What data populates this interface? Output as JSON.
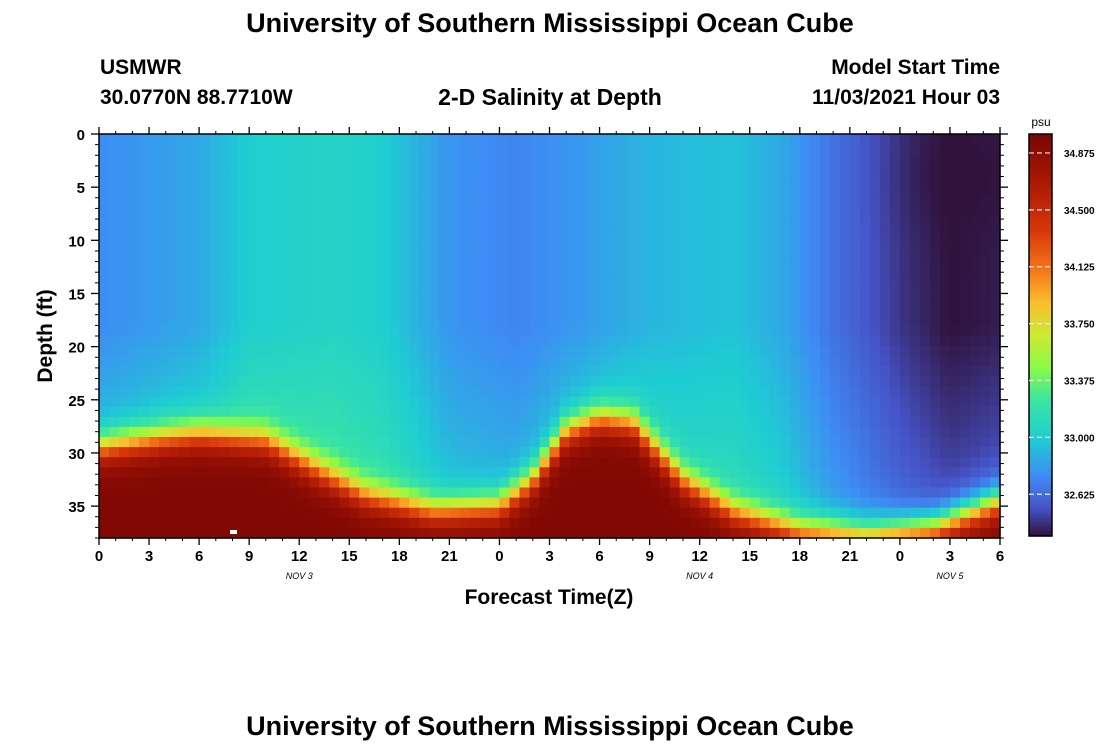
{
  "page": {
    "title": "University of Southern Mississippi Ocean Cube",
    "bottom_title": "University of Southern Mississippi Ocean Cube"
  },
  "header": {
    "station": "USMWR",
    "coords": "30.0770N  88.7710W",
    "plot_title": "2-D Salinity at Depth",
    "model_start_label": "Model Start Time",
    "model_start_value": "11/03/2021 Hour 03"
  },
  "chart_data": {
    "type": "heatmap",
    "title": "2-D Salinity at Depth",
    "xlabel": "Forecast Time(Z)",
    "ylabel": "Depth (ft)",
    "x_range_hours": [
      0,
      54
    ],
    "x_tick_labels": [
      "0",
      "3",
      "6",
      "9",
      "12",
      "15",
      "18",
      "21",
      "0",
      "3",
      "6",
      "9",
      "12",
      "15",
      "18",
      "21",
      "0",
      "3",
      "6"
    ],
    "x_tick_hours": [
      0,
      3,
      6,
      9,
      12,
      15,
      18,
      21,
      24,
      27,
      30,
      33,
      36,
      39,
      42,
      45,
      48,
      51,
      54
    ],
    "date_labels": [
      {
        "text": "NOV 3",
        "hour": 12
      },
      {
        "text": "NOV 4",
        "hour": 36
      },
      {
        "text": "NOV 5",
        "hour": 51
      }
    ],
    "y_range_ft": [
      0,
      38
    ],
    "y_ticks": [
      "0",
      "5",
      "10",
      "15",
      "20",
      "25",
      "30",
      "35"
    ],
    "y_tick_values": [
      0,
      5,
      10,
      15,
      20,
      25,
      30,
      35
    ],
    "colorbar": {
      "unit": "psu",
      "range": [
        32.35,
        35.0
      ],
      "tick_labels": [
        "34.875",
        "34.500",
        "34.125",
        "33.750",
        "33.375",
        "33.000",
        "32.625"
      ],
      "tick_values": [
        34.875,
        34.5,
        34.125,
        33.75,
        33.375,
        33.0,
        32.625
      ]
    },
    "field_model": {
      "surface_salinity": [
        {
          "hour": 0,
          "psu": 32.75
        },
        {
          "hour": 6,
          "psu": 32.85
        },
        {
          "hour": 9,
          "psu": 33.0
        },
        {
          "hour": 14,
          "psu": 33.05
        },
        {
          "hour": 17,
          "psu": 33.0
        },
        {
          "hour": 21,
          "psu": 32.78
        },
        {
          "hour": 25,
          "psu": 32.72
        },
        {
          "hour": 29,
          "psu": 32.8
        },
        {
          "hour": 33,
          "psu": 32.9
        },
        {
          "hour": 38,
          "psu": 32.95
        },
        {
          "hour": 41,
          "psu": 32.85
        },
        {
          "hour": 44,
          "psu": 32.65
        },
        {
          "hour": 48,
          "psu": 32.45
        },
        {
          "hour": 51,
          "psu": 32.35
        },
        {
          "hour": 54,
          "psu": 32.38
        }
      ],
      "halocline_depth_ft": [
        {
          "hour": 0,
          "ft": 29.5
        },
        {
          "hour": 4,
          "ft": 28.5
        },
        {
          "hour": 6,
          "ft": 28.2
        },
        {
          "hour": 10,
          "ft": 28.8
        },
        {
          "hour": 13,
          "ft": 31.5
        },
        {
          "hour": 16,
          "ft": 34.0
        },
        {
          "hour": 20,
          "ft": 35.4
        },
        {
          "hour": 24,
          "ft": 35.0
        },
        {
          "hour": 26,
          "ft": 32.5
        },
        {
          "hour": 28,
          "ft": 28.0
        },
        {
          "hour": 30,
          "ft": 26.7
        },
        {
          "hour": 32,
          "ft": 27.2
        },
        {
          "hour": 35,
          "ft": 32.5
        },
        {
          "hour": 38,
          "ft": 35.5
        },
        {
          "hour": 42,
          "ft": 37.3
        },
        {
          "hour": 46,
          "ft": 37.7
        },
        {
          "hour": 50,
          "ft": 37.0
        },
        {
          "hour": 54,
          "ft": 34.5
        }
      ],
      "bottom_salinity": 34.95,
      "low_salinity_core": {
        "hour": 52,
        "depth_ft": 4,
        "psu": 32.35
      }
    }
  }
}
